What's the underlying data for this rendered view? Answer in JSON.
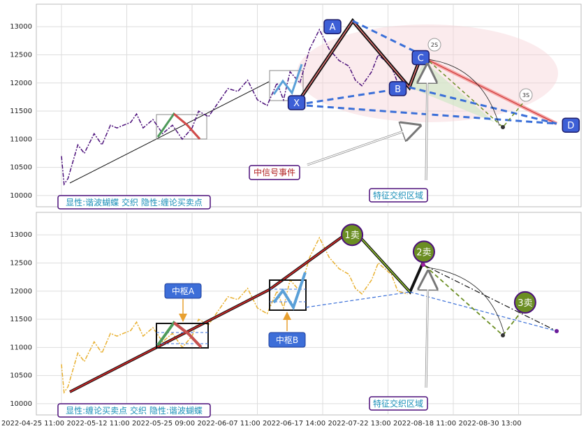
{
  "chart_data": [
    {
      "type": "line",
      "panel": "top",
      "ylim": [
        9800,
        13400
      ],
      "yticks": [
        10000,
        10500,
        11000,
        11500,
        12000,
        12500,
        13000
      ],
      "grid": true,
      "colors": {
        "price": "#4b0f7a",
        "pattern": "#3a6fd8",
        "point_fill": "#3d5fd6",
        "ellipse": "#f3c9cf",
        "triangle": "#c9e6c0"
      },
      "series": [
        {
          "name": "",
          "x": [
            0,
            0.04,
            0.1,
            0.25,
            0.35,
            0.5,
            0.62,
            0.75,
            0.85,
            0.95,
            1.06,
            1.15,
            1.25,
            1.4,
            1.55,
            1.7,
            1.85,
            2.0,
            2.1,
            2.25,
            2.4,
            2.55,
            2.7,
            2.85,
            3.0,
            3.15,
            3.3,
            3.4,
            3.5,
            3.65,
            3.8,
            3.95,
            4.1,
            4.25,
            4.4,
            4.5,
            4.6,
            4.75,
            4.85,
            4.95,
            5.05,
            5.15,
            5.3
          ],
          "y": [
            10700,
            10200,
            10300,
            10900,
            10750,
            11100,
            10900,
            11250,
            11200,
            11250,
            11300,
            11450,
            11200,
            11350,
            11100,
            11250,
            11000,
            11200,
            11500,
            11400,
            11650,
            11900,
            11850,
            12050,
            11700,
            11600,
            12000,
            11700,
            12200,
            12000,
            12600,
            12950,
            12600,
            12400,
            12300,
            12050,
            11950,
            12200,
            12500,
            12400,
            12300,
            12000,
            11950
          ]
        }
      ],
      "harmonic_points": [
        {
          "label": "X",
          "x": 3.6,
          "y": 11650
        },
        {
          "label": "A",
          "x": 4.15,
          "y": 13000
        },
        {
          "label": "B",
          "x": 5.15,
          "y": 11900
        },
        {
          "label": "C",
          "x": 5.5,
          "y": 12450
        },
        {
          "label": "D",
          "x": 7.8,
          "y": 11250
        }
      ],
      "circle_marks": [
        {
          "label": "2S",
          "x": 5.6,
          "y": 12550
        },
        {
          "label": "3S",
          "x": 7.0,
          "y": 11800
        }
      ],
      "annotations": [
        {
          "id": "signal",
          "text": "中信号事件"
        },
        {
          "id": "zone",
          "text": "特征交织区域"
        },
        {
          "id": "legend",
          "text": "显性:谐波蝴蝶 交织 隐性:缠论买卖点"
        }
      ]
    },
    {
      "type": "line",
      "panel": "bottom",
      "ylim": [
        9800,
        13400
      ],
      "yticks": [
        10000,
        10500,
        11000,
        11500,
        12000,
        12500,
        13000
      ],
      "grid": true,
      "colors": {
        "price": "#e8b030",
        "trend": "#c62828",
        "sell_point": "#6b8e23",
        "pivot_label": "#3a6fd8"
      },
      "series": [
        {
          "name": "",
          "x": [
            0,
            0.04,
            0.1,
            0.25,
            0.35,
            0.5,
            0.62,
            0.75,
            0.85,
            0.95,
            1.06,
            1.15,
            1.25,
            1.4,
            1.55,
            1.7,
            1.85,
            2.0,
            2.1,
            2.25,
            2.4,
            2.55,
            2.7,
            2.85,
            3.0,
            3.15,
            3.3,
            3.4,
            3.5,
            3.65,
            3.8,
            3.95,
            4.1,
            4.25,
            4.4,
            4.5,
            4.6,
            4.75,
            4.85,
            4.95,
            5.05,
            5.15,
            5.3
          ],
          "y": [
            10700,
            10200,
            10300,
            10900,
            10750,
            11100,
            10900,
            11250,
            11200,
            11250,
            11300,
            11450,
            11200,
            11350,
            11100,
            11250,
            11000,
            11200,
            11500,
            11400,
            11650,
            11900,
            11850,
            12050,
            11700,
            11600,
            12000,
            11700,
            12200,
            12000,
            12600,
            12950,
            12600,
            12400,
            12300,
            12050,
            11950,
            12200,
            12500,
            12400,
            12300,
            12000,
            11950
          ]
        }
      ],
      "sell_points": [
        {
          "label": "1卖",
          "x": 4.45,
          "y": 13000
        },
        {
          "label": "2卖",
          "x": 5.55,
          "y": 12700
        },
        {
          "label": "3卖",
          "x": 7.1,
          "y": 11800
        }
      ],
      "pivots": [
        {
          "label": "中枢A"
        },
        {
          "label": "中枢B"
        }
      ],
      "annotations": [
        {
          "id": "zone",
          "text": "特征交织区域"
        },
        {
          "id": "legend",
          "text": "显性:缠论买卖点 交织 隐性:谐波蝴蝶"
        }
      ]
    }
  ],
  "x_axis": {
    "ticks": [
      "2022-04-25 11:00",
      "2022-05-12 11:00",
      "2022-05-25 09:00",
      "2022-06-07 11:00",
      "2022-06-17 14:00",
      "2022-07-22 13:00",
      "2022-08-18 11:00",
      "2022-08-30 13:00"
    ]
  }
}
